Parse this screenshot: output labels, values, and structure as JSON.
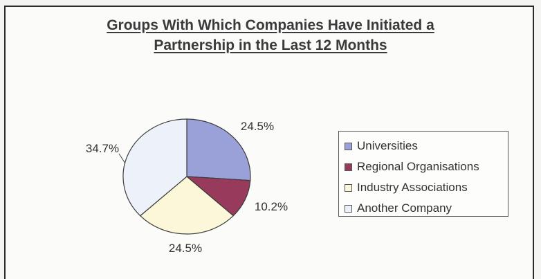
{
  "chart_data": {
    "type": "pie",
    "title_line1": "Groups With Which Companies Have Initiated a",
    "title_line2": "Partnership in the Last 12 Months",
    "legend_position": "right",
    "slices": [
      {
        "label": "Universities",
        "value": 24.5,
        "value_label": "24.5%",
        "color": "#9aa0d8"
      },
      {
        "label": "Regional Organisations",
        "value": 10.2,
        "value_label": "10.2%",
        "color": "#973a5c"
      },
      {
        "label": "Industry Associations",
        "value": 24.5,
        "value_label": "24.5%",
        "color": "#fbf7d8"
      },
      {
        "label": "Another Company",
        "value": 34.7,
        "value_label": "34.7%",
        "color": "#ecf1fa"
      }
    ]
  }
}
